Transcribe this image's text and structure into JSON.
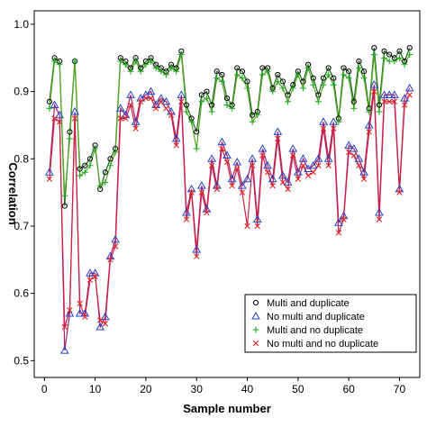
{
  "chart_data": {
    "type": "line",
    "xlabel": "Sample number",
    "ylabel": "Correlation",
    "xlim": [
      -2,
      74
    ],
    "ylim": [
      0.475,
      1.02
    ],
    "xticks": [
      0,
      10,
      20,
      30,
      40,
      50,
      60,
      70
    ],
    "yticks": [
      0.5,
      0.6,
      0.7,
      0.8,
      0.9,
      1.0
    ],
    "ytick_labels": [
      "0.5",
      "0.6",
      "0.7",
      "0.8",
      "0.9",
      "1.0"
    ],
    "legend_position": "bottom-right",
    "x": [
      1,
      2,
      3,
      4,
      5,
      6,
      7,
      8,
      9,
      10,
      11,
      12,
      13,
      14,
      15,
      16,
      17,
      18,
      19,
      20,
      21,
      22,
      23,
      24,
      25,
      26,
      27,
      28,
      29,
      30,
      31,
      32,
      33,
      34,
      35,
      36,
      37,
      38,
      39,
      40,
      41,
      42,
      43,
      44,
      45,
      46,
      47,
      48,
      49,
      50,
      51,
      52,
      53,
      54,
      55,
      56,
      57,
      58,
      59,
      60,
      61,
      62,
      63,
      64,
      65,
      66,
      67,
      68,
      69,
      70,
      71,
      72
    ],
    "series": [
      {
        "name": "Multi and duplicate",
        "marker": "circle",
        "color": "#000000",
        "values": [
          0.885,
          0.95,
          0.945,
          0.73,
          0.84,
          0.945,
          0.785,
          0.79,
          0.8,
          0.82,
          0.755,
          0.78,
          0.8,
          0.815,
          0.95,
          0.945,
          0.935,
          0.95,
          0.935,
          0.945,
          0.95,
          0.94,
          0.935,
          0.93,
          0.94,
          0.935,
          0.96,
          0.88,
          0.86,
          0.84,
          0.895,
          0.9,
          0.88,
          0.93,
          0.925,
          0.89,
          0.88,
          0.935,
          0.93,
          0.915,
          0.865,
          0.87,
          0.935,
          0.935,
          0.905,
          0.925,
          0.915,
          0.895,
          0.91,
          0.93,
          0.915,
          0.94,
          0.92,
          0.895,
          0.92,
          0.935,
          0.92,
          0.86,
          0.935,
          0.93,
          0.885,
          0.945,
          0.93,
          0.875,
          0.965,
          0.88,
          0.96,
          0.955,
          0.95,
          0.96,
          0.945,
          0.965
        ]
      },
      {
        "name": "No multi and duplicate",
        "marker": "triangle",
        "color": "#2244cc",
        "values": [
          0.78,
          0.88,
          0.865,
          0.515,
          0.57,
          0.87,
          0.57,
          0.57,
          0.63,
          0.63,
          0.55,
          0.565,
          0.655,
          0.68,
          0.875,
          0.865,
          0.895,
          0.855,
          0.89,
          0.895,
          0.9,
          0.88,
          0.89,
          0.885,
          0.87,
          0.83,
          0.895,
          0.72,
          0.755,
          0.665,
          0.76,
          0.725,
          0.8,
          0.76,
          0.825,
          0.805,
          0.77,
          0.795,
          0.76,
          0.77,
          0.8,
          0.71,
          0.815,
          0.79,
          0.77,
          0.84,
          0.775,
          0.765,
          0.815,
          0.78,
          0.8,
          0.785,
          0.79,
          0.8,
          0.855,
          0.8,
          0.855,
          0.705,
          0.715,
          0.82,
          0.815,
          0.8,
          0.78,
          0.85,
          0.91,
          0.72,
          0.895,
          0.895,
          0.895,
          0.755,
          0.89,
          0.905
        ]
      },
      {
        "name": "Multi and no duplicate",
        "marker": "plus",
        "color": "#22aa22",
        "values": [
          0.875,
          0.945,
          0.94,
          0.745,
          0.83,
          0.945,
          0.775,
          0.78,
          0.79,
          0.815,
          0.76,
          0.765,
          0.79,
          0.81,
          0.945,
          0.94,
          0.93,
          0.945,
          0.93,
          0.94,
          0.945,
          0.935,
          0.93,
          0.925,
          0.935,
          0.93,
          0.955,
          0.87,
          0.855,
          0.815,
          0.885,
          0.89,
          0.87,
          0.92,
          0.915,
          0.88,
          0.875,
          0.925,
          0.92,
          0.905,
          0.855,
          0.865,
          0.925,
          0.93,
          0.9,
          0.915,
          0.905,
          0.885,
          0.905,
          0.925,
          0.905,
          0.935,
          0.91,
          0.885,
          0.91,
          0.925,
          0.91,
          0.855,
          0.925,
          0.92,
          0.875,
          0.935,
          0.92,
          0.87,
          0.955,
          0.87,
          0.95,
          0.945,
          0.945,
          0.95,
          0.94,
          0.955
        ]
      },
      {
        "name": "No multi and no duplicate",
        "marker": "x",
        "color": "#dd2222",
        "values": [
          0.77,
          0.86,
          0.855,
          0.55,
          0.575,
          0.86,
          0.585,
          0.565,
          0.62,
          0.625,
          0.56,
          0.555,
          0.65,
          0.67,
          0.86,
          0.86,
          0.88,
          0.845,
          0.885,
          0.89,
          0.89,
          0.875,
          0.885,
          0.875,
          0.865,
          0.82,
          0.885,
          0.71,
          0.75,
          0.655,
          0.75,
          0.72,
          0.79,
          0.755,
          0.815,
          0.795,
          0.76,
          0.785,
          0.75,
          0.7,
          0.79,
          0.7,
          0.805,
          0.78,
          0.76,
          0.83,
          0.765,
          0.755,
          0.805,
          0.77,
          0.79,
          0.775,
          0.78,
          0.79,
          0.845,
          0.79,
          0.845,
          0.69,
          0.71,
          0.81,
          0.805,
          0.79,
          0.77,
          0.84,
          0.9,
          0.71,
          0.885,
          0.885,
          0.885,
          0.75,
          0.88,
          0.895
        ]
      }
    ]
  }
}
